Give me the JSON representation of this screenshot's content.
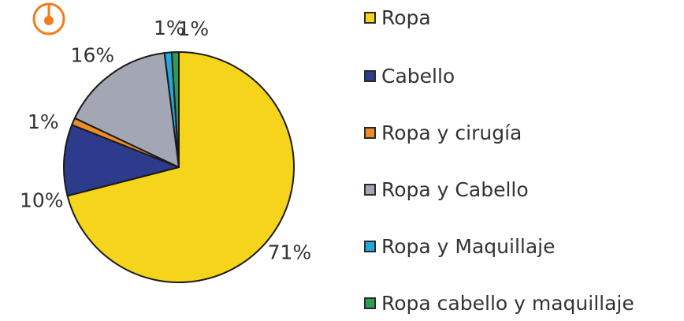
{
  "chart_data": {
    "type": "pie",
    "title": "",
    "slices": [
      {
        "label": "Ropa",
        "value": 71,
        "value_label": "71%",
        "color": "#f5d41c"
      },
      {
        "label": "Cabello",
        "value": 10,
        "value_label": "10%",
        "color": "#2d3b8c"
      },
      {
        "label": "Ropa y cirugía",
        "value": 1,
        "value_label": "1%",
        "color": "#ef8c2a"
      },
      {
        "label": "Ropa y Cabello",
        "value": 16,
        "value_label": "16%",
        "color": "#a3a6b3"
      },
      {
        "label": "Ropa y Maquillaje",
        "value": 1,
        "value_label": "1%",
        "color": "#22a8dc"
      },
      {
        "label": "Ropa cabello y maquillaje",
        "value": 1,
        "value_label": "1%",
        "color": "#2e9d4f"
      }
    ],
    "start_angle_deg": 0,
    "direction": "clockwise",
    "legend_position": "right"
  },
  "colors": {
    "label_text": "#333333",
    "outline": "#1a1a1a",
    "marker": "#ef7d1e"
  },
  "marker_icon": "location-pin-icon"
}
